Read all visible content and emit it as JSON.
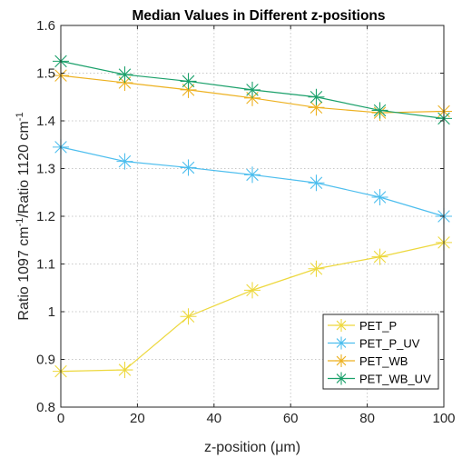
{
  "chart_data": {
    "type": "line",
    "title": "Median Values in Different z-positions",
    "xlabel": "z-position (μm)",
    "ylabel_parts": [
      "Ratio 1097 cm",
      "-1",
      "/Ratio 1120 cm",
      "-1"
    ],
    "xlim": [
      0,
      100
    ],
    "ylim": [
      0.8,
      1.6
    ],
    "xticks": [
      0,
      20,
      40,
      60,
      80,
      100
    ],
    "yticks": [
      0.8,
      0.9,
      1,
      1.1,
      1.2,
      1.3,
      1.4,
      1.5,
      1.6
    ],
    "grid": true,
    "legend_position": "bottom-right",
    "marker": "asterisk",
    "x": [
      0,
      16.7,
      33.3,
      50,
      66.7,
      83.3,
      100
    ],
    "series": [
      {
        "name": "PET_P",
        "color": "#EDD83D",
        "values": [
          0.875,
          0.878,
          0.99,
          1.045,
          1.09,
          1.115,
          1.145
        ]
      },
      {
        "name": "PET_P_UV",
        "color": "#4DBEEE",
        "values": [
          1.345,
          1.315,
          1.302,
          1.287,
          1.27,
          1.24,
          1.2
        ]
      },
      {
        "name": "PET_WB",
        "color": "#EDB120",
        "values": [
          1.495,
          1.48,
          1.465,
          1.448,
          1.428,
          1.417,
          1.42
        ]
      },
      {
        "name": "PET_WB_UV",
        "color": "#1AA06A",
        "values": [
          1.525,
          1.497,
          1.483,
          1.465,
          1.45,
          1.422,
          1.405
        ]
      }
    ]
  }
}
